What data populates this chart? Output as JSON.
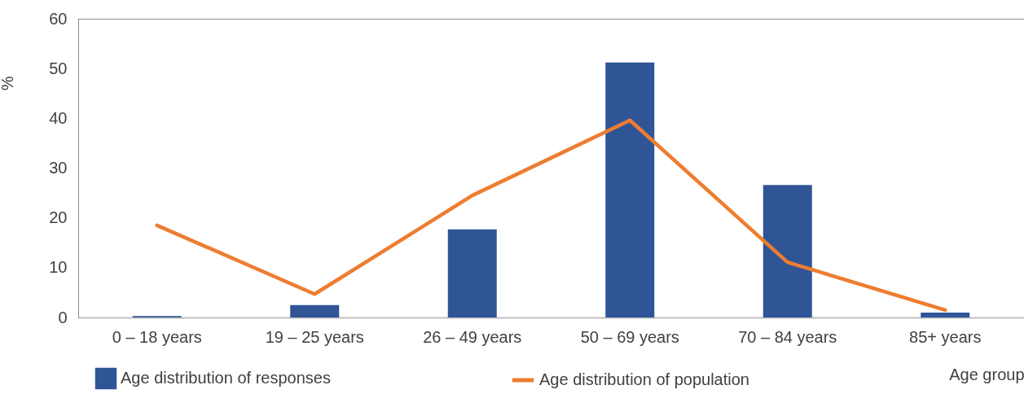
{
  "chart_data": {
    "type": "bar",
    "xlabel": "Age group",
    "ylabel": "%",
    "categories": [
      "0 – 18 years",
      "19 – 25 years",
      "26 –  49 years",
      "50 –  69 years",
      "70 – 84 years",
      "85+ years"
    ],
    "series": [
      {
        "name": "Age distribution of responses",
        "color": "#2f5597",
        "values": [
          0.3,
          2.5,
          17.7,
          51.2,
          26.6,
          1.0
        ]
      },
      {
        "name": "Age distribution of population",
        "type": "line",
        "color": "#ed7d31",
        "values": [
          18.5,
          4.7,
          24.5,
          39.6,
          11.1,
          1.5
        ]
      }
    ],
    "ylim": [
      0,
      60
    ],
    "yticks": [
      0,
      10,
      20,
      30,
      40,
      50,
      60
    ],
    "grid": false,
    "legend": "bottom"
  }
}
